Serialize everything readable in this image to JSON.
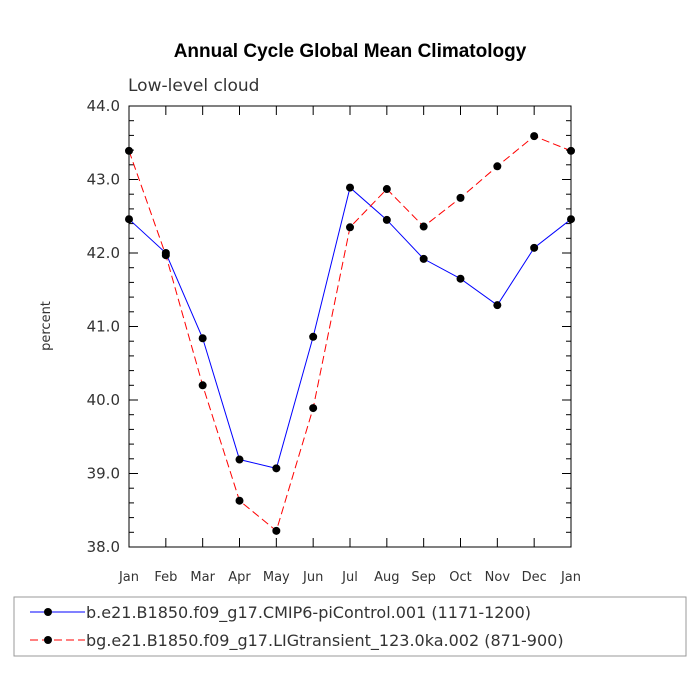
{
  "chart_data": {
    "type": "line",
    "title": "Annual Cycle Global Mean Climatology",
    "subtitle": "Low-level cloud",
    "xlabel": "",
    "ylabel": "percent",
    "categories": [
      "Jan",
      "Feb",
      "Mar",
      "Apr",
      "May",
      "Jun",
      "Jul",
      "Aug",
      "Sep",
      "Oct",
      "Nov",
      "Dec",
      "Jan"
    ],
    "ylim": [
      38.0,
      44.0
    ],
    "yticks": [
      "38.0",
      "39.0",
      "40.0",
      "41.0",
      "42.0",
      "43.0",
      "44.0"
    ],
    "grid": false,
    "legend_position": "bottom",
    "series": [
      {
        "name": "b.e21.B1850.f09_g17.CMIP6-piControl.001 (1171-1200)",
        "color": "#0000ff",
        "line_style": "solid",
        "values": [
          42.46,
          42.0,
          40.84,
          39.19,
          39.07,
          40.86,
          42.89,
          42.45,
          41.92,
          41.65,
          41.29,
          42.07,
          42.46
        ]
      },
      {
        "name": "bg.e21.B1850.f09_g17.LIGtransient_123.0ka.002 (871-900)",
        "color": "#ff0000",
        "line_style": "dashed",
        "values": [
          43.39,
          41.97,
          40.2,
          38.63,
          38.22,
          39.89,
          42.35,
          42.87,
          42.36,
          42.75,
          43.18,
          43.59,
          43.39
        ]
      }
    ]
  }
}
